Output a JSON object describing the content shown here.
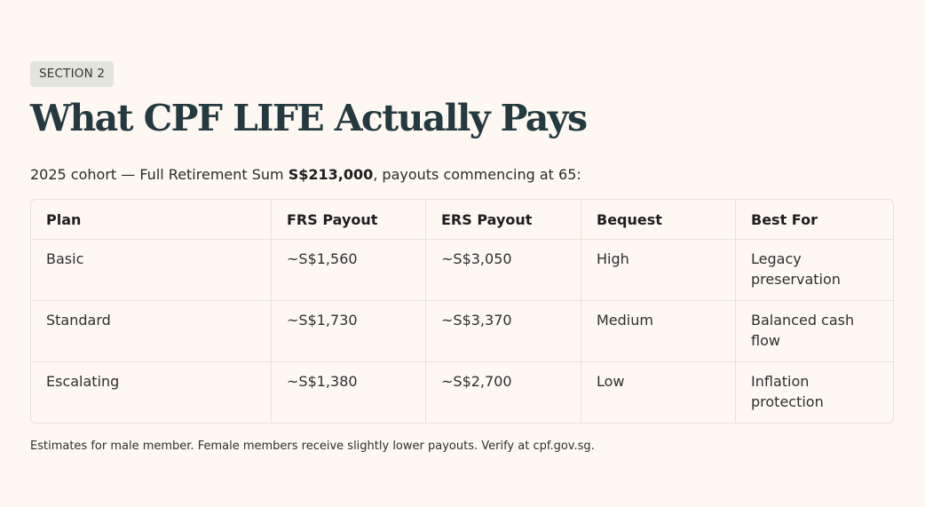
{
  "section": {
    "badge": "SECTION 2",
    "title": "What CPF LIFE Actually Pays"
  },
  "intro": {
    "before": "2025 cohort — Full Retirement Sum ",
    "highlight": "S$213,000",
    "after": ", payouts commencing at 65:"
  },
  "table": {
    "headers": [
      "Plan",
      "FRS Payout",
      "ERS Payout",
      "Bequest",
      "Best For"
    ],
    "rows": [
      [
        "Basic",
        "~S$1,560",
        "~S$3,050",
        "High",
        "Legacy preservation"
      ],
      [
        "Standard",
        "~S$1,730",
        "~S$3,370",
        "Medium",
        "Balanced cash flow"
      ],
      [
        "Escalating",
        "~S$1,380",
        "~S$2,700",
        "Low",
        "Inflation protection"
      ]
    ]
  },
  "footnote": "Estimates for male member. Female members receive slightly lower payouts. Verify at cpf.gov.sg."
}
